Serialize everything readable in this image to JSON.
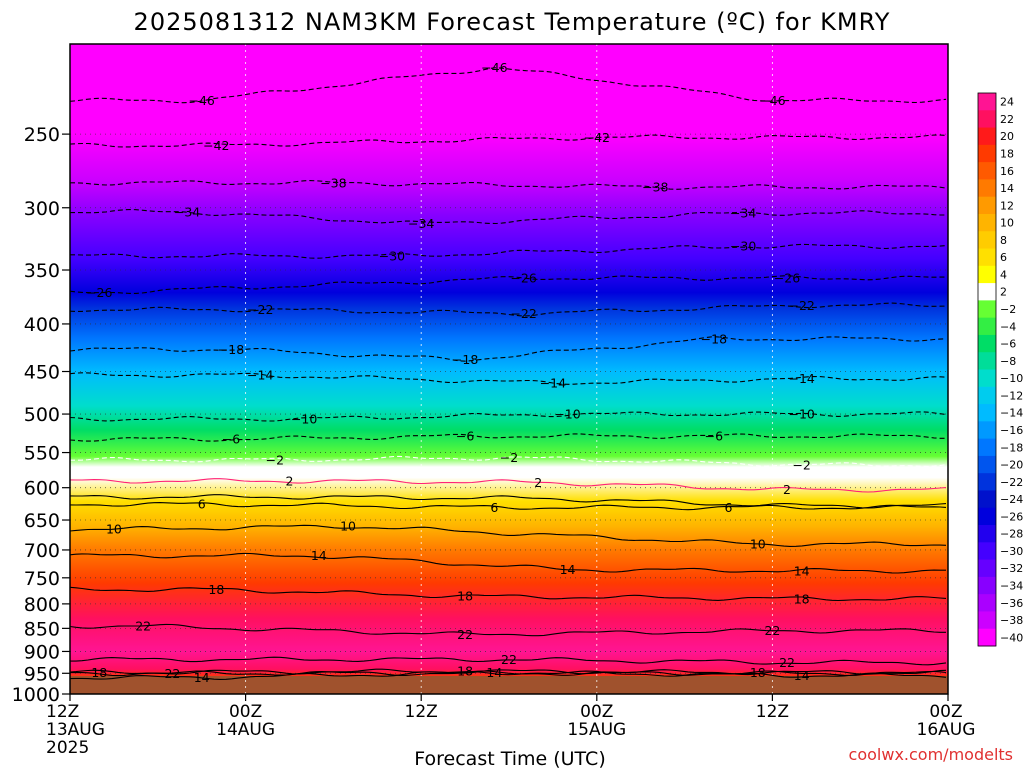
{
  "chart_data": {
    "type": "contour",
    "title": "2025081312 NAM3KM Forecast Temperature (ºC) for KMRY",
    "xlabel": "Forecast Time (UTC)",
    "credit": "coolwx.com/modelts",
    "y_axis": {
      "quantity": "pressure (hPa)",
      "scale": "log",
      "inverted": true,
      "range": [
        1000,
        200
      ],
      "ticks": [
        250,
        300,
        350,
        400,
        450,
        500,
        550,
        600,
        650,
        700,
        750,
        800,
        850,
        900,
        950,
        1000
      ]
    },
    "x_axis": {
      "range_hours": [
        0,
        60
      ],
      "ticks": [
        {
          "hour": 0,
          "label": [
            "12Z",
            "13AUG",
            "2025"
          ]
        },
        {
          "hour": 12,
          "label": [
            "00Z",
            "14AUG"
          ]
        },
        {
          "hour": 24,
          "label": [
            "12Z"
          ]
        },
        {
          "hour": 36,
          "label": [
            "00Z",
            "15AUG"
          ]
        },
        {
          "hour": 48,
          "label": [
            "12Z"
          ]
        },
        {
          "hour": 60,
          "label": [
            "00Z",
            "16AUG"
          ]
        }
      ]
    },
    "colorbar": {
      "labels": [
        "24",
        "22",
        "20",
        "18",
        "16",
        "14",
        "12",
        "10",
        "8",
        "6",
        "4",
        "2",
        "-2",
        "-4",
        "-6",
        "-8",
        "-10",
        "-12",
        "-14",
        "-16",
        "-18",
        "-20",
        "-22",
        "-24",
        "-26",
        "-28",
        "-30",
        "-32",
        "-34",
        "-36",
        "-38",
        "-40"
      ],
      "colors": [
        "#ff1493",
        "#ff1060",
        "#ff1a1a",
        "#ff3a00",
        "#ff5a00",
        "#ff7a00",
        "#ff9a00",
        "#ffb400",
        "#ffcc00",
        "#ffe000",
        "#ffff00",
        "#ffffff",
        "#66ff33",
        "#33ee44",
        "#00dd66",
        "#00dd99",
        "#00ddcc",
        "#00ccee",
        "#00bbff",
        "#0099ff",
        "#0077ff",
        "#0055ee",
        "#0033dd",
        "#0011cc",
        "#0000dd",
        "#2200ee",
        "#4400ff",
        "#6600ff",
        "#8800ff",
        "#aa00ff",
        "#cc00ff",
        "#ff00ff"
      ]
    },
    "profile": [
      {
        "p": 200,
        "t": -50
      },
      {
        "p": 225,
        "t": -46
      },
      {
        "p": 250,
        "t": -42
      },
      {
        "p": 280,
        "t": -38
      },
      {
        "p": 305,
        "t": -34
      },
      {
        "p": 340,
        "t": -30
      },
      {
        "p": 370,
        "t": -26
      },
      {
        "p": 385,
        "t": -22
      },
      {
        "p": 415,
        "t": -18
      },
      {
        "p": 450,
        "t": -14
      },
      {
        "p": 490,
        "t": -10
      },
      {
        "p": 520,
        "t": -6
      },
      {
        "p": 555,
        "t": -2
      },
      {
        "p": 570,
        "t": 0
      },
      {
        "p": 585,
        "t": 2
      },
      {
        "p": 620,
        "t": 6
      },
      {
        "p": 660,
        "t": 10
      },
      {
        "p": 700,
        "t": 14
      },
      {
        "p": 760,
        "t": 18
      },
      {
        "p": 830,
        "t": 22
      },
      {
        "p": 900,
        "t": 24
      },
      {
        "p": 940,
        "t": 22
      },
      {
        "p": 960,
        "t": 18
      },
      {
        "p": 975,
        "t": 14
      },
      {
        "p": 1000,
        "t": 14
      }
    ],
    "contours": [
      {
        "level": -46,
        "labels": [
          {
            "x": 9,
            "p": 230
          },
          {
            "x": 29,
            "p": 212
          },
          {
            "x": 48,
            "p": 230
          }
        ]
      },
      {
        "level": -42,
        "labels": [
          {
            "x": 10,
            "p": 257
          },
          {
            "x": 36,
            "p": 252
          }
        ]
      },
      {
        "level": -38,
        "labels": [
          {
            "x": 18,
            "p": 282
          },
          {
            "x": 40,
            "p": 285
          }
        ]
      },
      {
        "level": -34,
        "labels": [
          {
            "x": 8,
            "p": 303
          },
          {
            "x": 24,
            "p": 312
          },
          {
            "x": 46,
            "p": 304
          }
        ]
      },
      {
        "level": -30,
        "labels": [
          {
            "x": 22,
            "p": 338
          },
          {
            "x": 46,
            "p": 330
          }
        ]
      },
      {
        "level": -26,
        "labels": [
          {
            "x": 2,
            "p": 370
          },
          {
            "x": 31,
            "p": 357
          },
          {
            "x": 49,
            "p": 357
          }
        ]
      },
      {
        "level": -22,
        "labels": [
          {
            "x": 13,
            "p": 386
          },
          {
            "x": 31,
            "p": 390
          },
          {
            "x": 50,
            "p": 382
          }
        ]
      },
      {
        "level": -18,
        "labels": [
          {
            "x": 11,
            "p": 426
          },
          {
            "x": 27,
            "p": 437
          },
          {
            "x": 44,
            "p": 415
          }
        ]
      },
      {
        "level": -14,
        "labels": [
          {
            "x": 13,
            "p": 454
          },
          {
            "x": 33,
            "p": 463
          },
          {
            "x": 50,
            "p": 458
          }
        ]
      },
      {
        "level": -10,
        "labels": [
          {
            "x": 16,
            "p": 506
          },
          {
            "x": 34,
            "p": 500
          },
          {
            "x": 50,
            "p": 500
          }
        ]
      },
      {
        "level": -6,
        "labels": [
          {
            "x": 11,
            "p": 532
          },
          {
            "x": 27,
            "p": 528
          },
          {
            "x": 44,
            "p": 528
          }
        ]
      },
      {
        "level": -2,
        "labels": [
          {
            "x": 14,
            "p": 560
          },
          {
            "x": 30,
            "p": 557
          },
          {
            "x": 50,
            "p": 567
          }
        ]
      },
      {
        "level": 2,
        "labels": [
          {
            "x": 15,
            "p": 590
          },
          {
            "x": 32,
            "p": 592
          },
          {
            "x": 49,
            "p": 603
          }
        ]
      },
      {
        "level": 6,
        "labels": [
          {
            "x": 9,
            "p": 625
          },
          {
            "x": 29,
            "p": 630
          },
          {
            "x": 45,
            "p": 630
          }
        ]
      },
      {
        "level": 10,
        "labels": [
          {
            "x": 3,
            "p": 665
          },
          {
            "x": 19,
            "p": 660
          },
          {
            "x": 47,
            "p": 690
          }
        ]
      },
      {
        "level": 14,
        "labels": [
          {
            "x": 17,
            "p": 710
          },
          {
            "x": 34,
            "p": 735
          },
          {
            "x": 50,
            "p": 737
          }
        ]
      },
      {
        "level": 18,
        "labels": [
          {
            "x": 10,
            "p": 772
          },
          {
            "x": 27,
            "p": 785
          },
          {
            "x": 50,
            "p": 790
          }
        ]
      },
      {
        "level": 22,
        "labels": [
          {
            "x": 5,
            "p": 845
          },
          {
            "x": 27,
            "p": 863
          },
          {
            "x": 48,
            "p": 855
          }
        ]
      },
      {
        "level": 22,
        "labels": [
          {
            "x": 30,
            "p": 918
          },
          {
            "x": 49,
            "p": 925
          }
        ]
      },
      {
        "level": 18,
        "labels": [
          {
            "x": 2,
            "p": 948
          },
          {
            "x": 27,
            "p": 945
          },
          {
            "x": 47,
            "p": 948
          }
        ]
      },
      {
        "level": 22,
        "labels": [
          {
            "x": 7,
            "p": 950
          }
        ]
      },
      {
        "level": 14,
        "labels": [
          {
            "x": 9,
            "p": 960
          },
          {
            "x": 29,
            "p": 948
          },
          {
            "x": 50,
            "p": 955
          }
        ]
      }
    ]
  }
}
